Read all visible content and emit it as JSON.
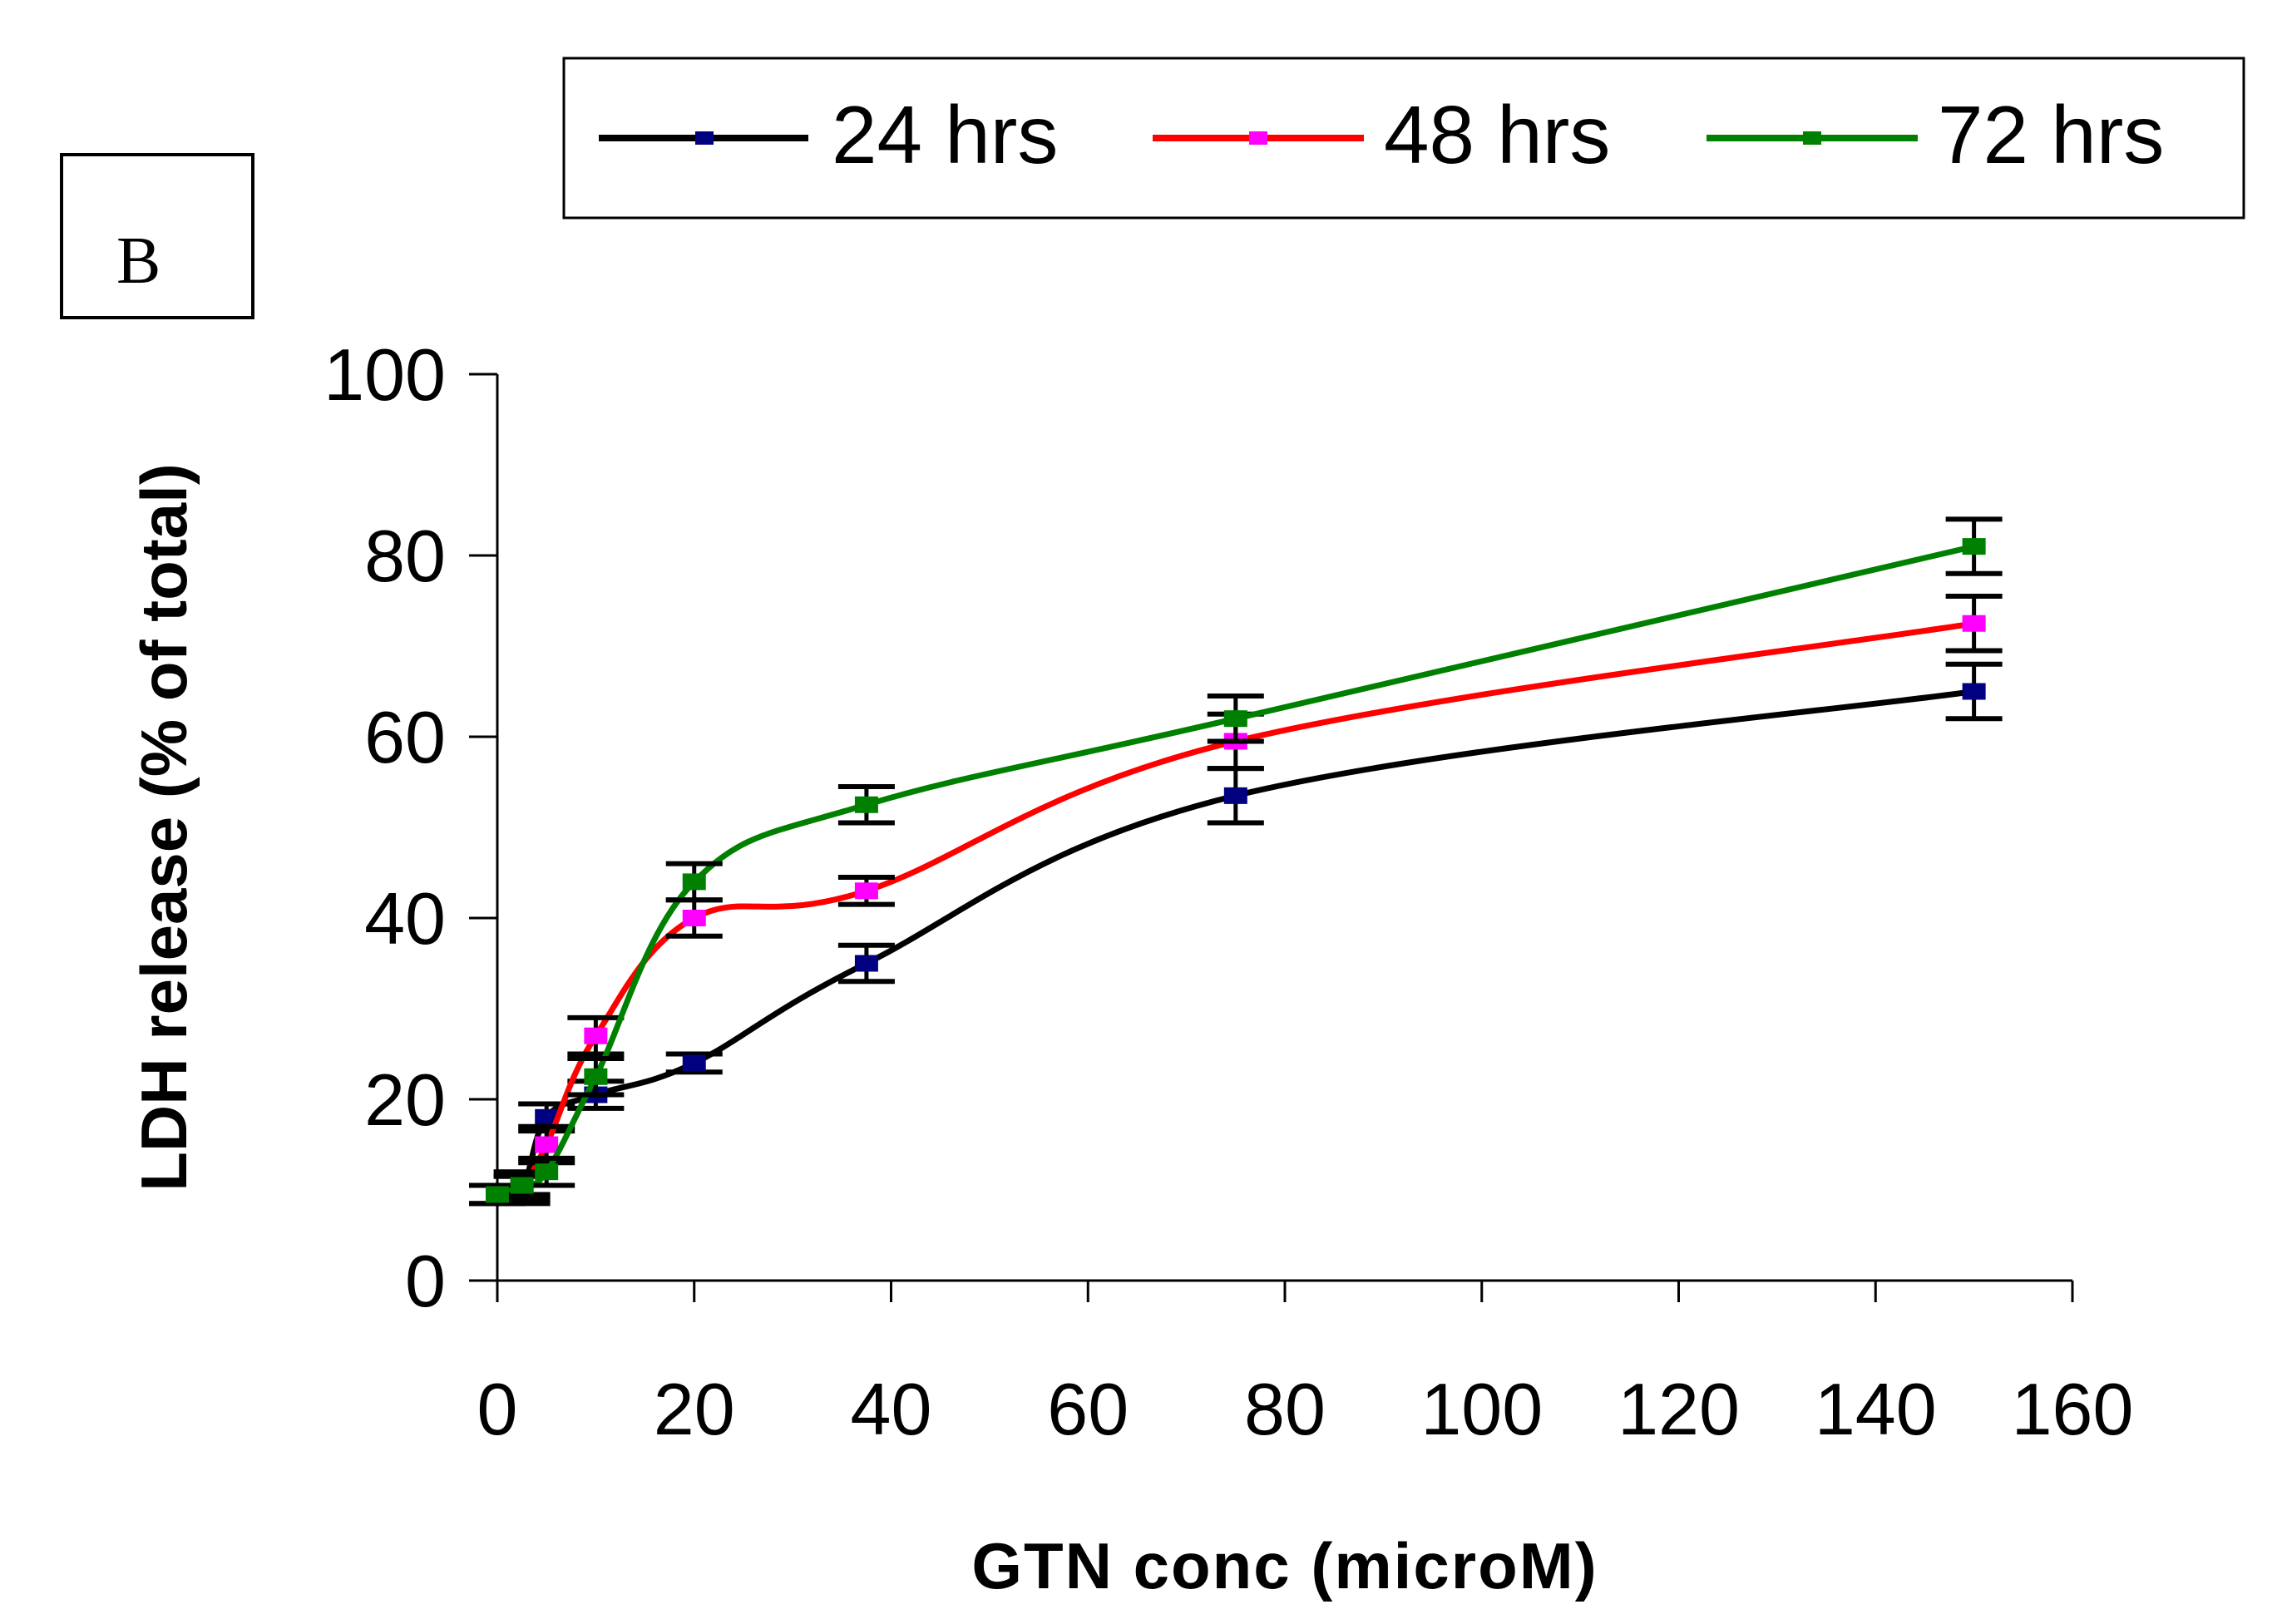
{
  "panel_label": "B",
  "chart_data": {
    "type": "line",
    "title": "",
    "xlabel": "GTN conc (microM)",
    "ylabel": "LDH release (% of total)",
    "xlim": [
      0,
      160
    ],
    "ylim": [
      0,
      100
    ],
    "xticks": [
      "0",
      "20",
      "40",
      "60",
      "80",
      "100",
      "120",
      "140",
      "160"
    ],
    "yticks": [
      "0",
      "20",
      "40",
      "60",
      "80",
      "100"
    ],
    "grid": false,
    "legend_position": "top",
    "series": [
      {
        "name": "24 hrs",
        "color": "#000000",
        "marker_color": "#000080",
        "x": [
          0,
          2.5,
          5,
          10,
          20,
          37.5,
          75,
          150
        ],
        "y": [
          9.5,
          10,
          18,
          20.5,
          24,
          35,
          53.5,
          65
        ],
        "err": [
          1,
          1.5,
          1.5,
          1.5,
          1,
          2,
          3,
          3
        ]
      },
      {
        "name": "48 hrs",
        "color": "#ff0000",
        "marker_color": "#ff00ff",
        "x": [
          0,
          2.5,
          5,
          10,
          20,
          37.5,
          75,
          150
        ],
        "y": [
          9.5,
          10.5,
          15,
          27,
          40,
          43,
          59.5,
          72.5
        ],
        "err": [
          1,
          1.5,
          2,
          2,
          2,
          1.5,
          3,
          3
        ]
      },
      {
        "name": "72 hrs",
        "color": "#008000",
        "marker_color": "#008000",
        "x": [
          0,
          2.5,
          5,
          10,
          20,
          37.5,
          75,
          150
        ],
        "y": [
          9.5,
          10.5,
          12,
          22.5,
          44,
          52.5,
          62,
          81
        ],
        "err": [
          1,
          1,
          1.5,
          2,
          2,
          2,
          2.5,
          3
        ]
      }
    ]
  }
}
